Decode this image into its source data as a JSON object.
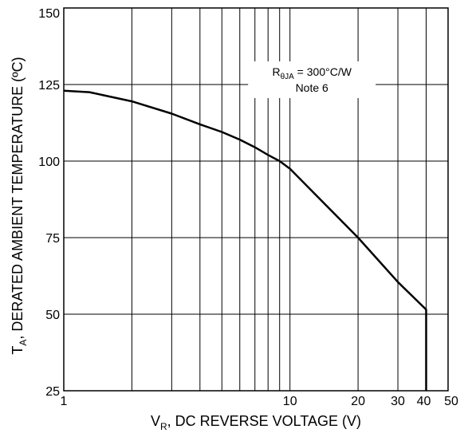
{
  "chart_data": {
    "type": "line",
    "x_scale": "log",
    "xlim": [
      1,
      50
    ],
    "ylim": [
      25,
      150
    ],
    "x_ticks": [
      1,
      10,
      20,
      30,
      40,
      50
    ],
    "x_minor_ticks": [
      2,
      3,
      4,
      5,
      6,
      7,
      8,
      9,
      20,
      30,
      40
    ],
    "y_ticks": [
      25,
      50,
      75,
      100,
      125,
      150
    ],
    "grid": true,
    "xlabel_main": "V",
    "xlabel_sub": "R",
    "xlabel_rest": ", DC REVERSE VOLTAGE (V)",
    "ylabel_main": "T",
    "ylabel_sub": "A",
    "ylabel_rest": ", DERATED AMBIENT TEMPERATURE (ºC)",
    "annotation": {
      "line1_main": "R",
      "line1_sub": "θJA",
      "line1_rest": " = 300°C/W",
      "line2": "Note 6"
    },
    "series": [
      {
        "color": "#000000",
        "x": [
          1,
          1.3,
          2,
          3,
          4,
          5,
          6,
          7,
          8,
          9,
          10,
          20,
          30,
          40,
          40
        ],
        "y": [
          123,
          122.5,
          119.5,
          115.5,
          112,
          109.5,
          107,
          104.5,
          102,
          100,
          97.5,
          75,
          60.5,
          51.5,
          25
        ]
      }
    ]
  }
}
